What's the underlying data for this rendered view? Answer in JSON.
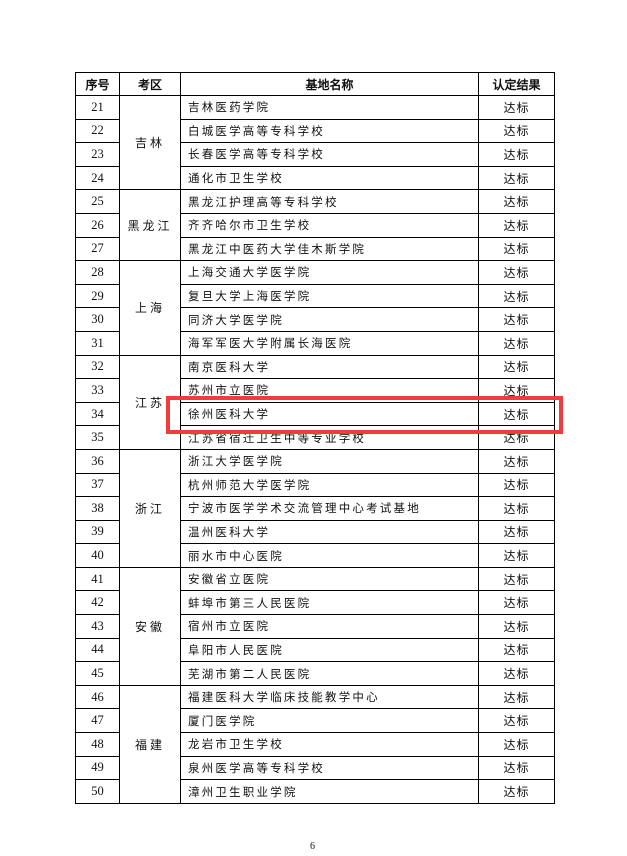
{
  "table": {
    "headers": [
      "序号",
      "考区",
      "基地名称",
      "认定结果"
    ],
    "regions": [
      {
        "name": "吉林",
        "rows": [
          {
            "no": "21",
            "name": "吉林医药学院",
            "result": "达标"
          },
          {
            "no": "22",
            "name": "白城医学高等专科学校",
            "result": "达标"
          },
          {
            "no": "23",
            "name": "长春医学高等专科学校",
            "result": "达标"
          },
          {
            "no": "24",
            "name": "通化市卫生学校",
            "result": "达标"
          }
        ]
      },
      {
        "name": "黑龙江",
        "rows": [
          {
            "no": "25",
            "name": "黑龙江护理高等专科学校",
            "result": "达标"
          },
          {
            "no": "26",
            "name": "齐齐哈尔市卫生学校",
            "result": "达标"
          },
          {
            "no": "27",
            "name": "黑龙江中医药大学佳木斯学院",
            "result": "达标"
          }
        ]
      },
      {
        "name": "上海",
        "rows": [
          {
            "no": "28",
            "name": "上海交通大学医学院",
            "result": "达标"
          },
          {
            "no": "29",
            "name": "复旦大学上海医学院",
            "result": "达标"
          },
          {
            "no": "30",
            "name": "同济大学医学院",
            "result": "达标"
          },
          {
            "no": "31",
            "name": "海军军医大学附属长海医院",
            "result": "达标"
          }
        ]
      },
      {
        "name": "江苏",
        "rows": [
          {
            "no": "32",
            "name": "南京医科大学",
            "result": "达标"
          },
          {
            "no": "33",
            "name": "苏州市立医院",
            "result": "达标"
          },
          {
            "no": "34",
            "name": "徐州医科大学",
            "result": "达标",
            "highlighted": true
          },
          {
            "no": "35",
            "name": "江苏省宿迁卫生中等专业学校",
            "result": "达标"
          }
        ]
      },
      {
        "name": "浙江",
        "rows": [
          {
            "no": "36",
            "name": "浙江大学医学院",
            "result": "达标"
          },
          {
            "no": "37",
            "name": "杭州师范大学医学院",
            "result": "达标"
          },
          {
            "no": "38",
            "name": "宁波市医学学术交流管理中心考试基地",
            "result": "达标"
          },
          {
            "no": "39",
            "name": "温州医科大学",
            "result": "达标"
          },
          {
            "no": "40",
            "name": "丽水市中心医院",
            "result": "达标"
          }
        ]
      },
      {
        "name": "安徽",
        "rows": [
          {
            "no": "41",
            "name": "安徽省立医院",
            "result": "达标"
          },
          {
            "no": "42",
            "name": "蚌埠市第三人民医院",
            "result": "达标"
          },
          {
            "no": "43",
            "name": "宿州市立医院",
            "result": "达标"
          },
          {
            "no": "44",
            "name": "阜阳市人民医院",
            "result": "达标"
          },
          {
            "no": "45",
            "name": "芜湖市第二人民医院",
            "result": "达标"
          }
        ]
      },
      {
        "name": "福建",
        "rows": [
          {
            "no": "46",
            "name": "福建医科大学临床技能教学中心",
            "result": "达标"
          },
          {
            "no": "47",
            "name": "厦门医学院",
            "result": "达标"
          },
          {
            "no": "48",
            "name": "龙岩市卫生学校",
            "result": "达标"
          },
          {
            "no": "49",
            "name": "泉州医学高等专科学校",
            "result": "达标"
          },
          {
            "no": "50",
            "name": "漳州卫生职业学院",
            "result": "达标"
          }
        ]
      }
    ]
  },
  "highlight_color": "#f23b3b",
  "page_number": "6"
}
